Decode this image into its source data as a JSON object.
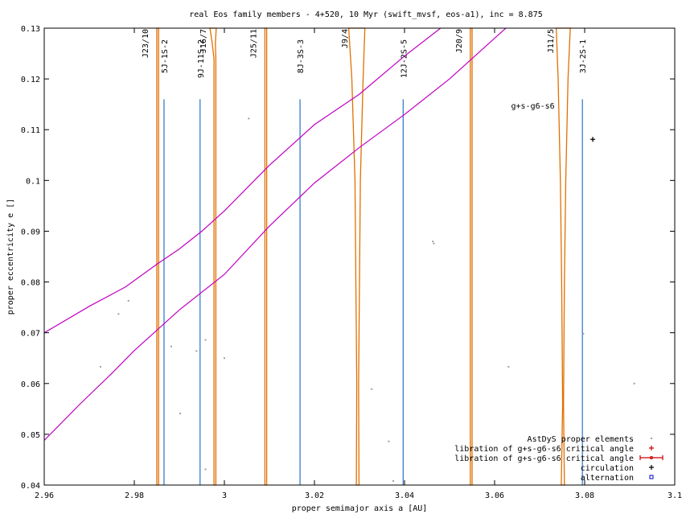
{
  "chart_data": {
    "type": "scatter",
    "title": "real Eos family members - 4+520, 10 Myr (swift_mvsf, eos-a1), inc = 8.875",
    "xlabel": "proper semimajor axis a [AU]",
    "ylabel": "proper eccentricity e []",
    "xlim": [
      2.96,
      3.1
    ],
    "ylim": [
      0.04,
      0.13
    ],
    "grid": false,
    "legend_position": "bottom-right",
    "x_ticks": [
      {
        "v": 2.96,
        "label": "2.96"
      },
      {
        "v": 2.98,
        "label": "2.98"
      },
      {
        "v": 3.0,
        "label": "3"
      },
      {
        "v": 3.02,
        "label": "3.02"
      },
      {
        "v": 3.04,
        "label": "3.04"
      },
      {
        "v": 3.06,
        "label": "3.06"
      },
      {
        "v": 3.08,
        "label": "3.08"
      },
      {
        "v": 3.1,
        "label": "3.1"
      }
    ],
    "y_ticks": [
      {
        "v": 0.04,
        "label": "0.04"
      },
      {
        "v": 0.05,
        "label": "0.05"
      },
      {
        "v": 0.06,
        "label": "0.06"
      },
      {
        "v": 0.07,
        "label": "0.07"
      },
      {
        "v": 0.08,
        "label": "0.08"
      },
      {
        "v": 0.09,
        "label": "0.09"
      },
      {
        "v": 0.1,
        "label": "0.1"
      },
      {
        "v": 0.11,
        "label": "0.11"
      },
      {
        "v": 0.12,
        "label": "0.12"
      },
      {
        "v": 0.13,
        "label": "0.13"
      }
    ],
    "colors": {
      "astdys": "#a0a0a0",
      "libration": "#cc0000",
      "circulation": "#000000",
      "alternation": "#0000cc",
      "mmr": "#e07000",
      "three_body": "#3a7ccc",
      "secular": "#c000c0"
    },
    "legend": [
      {
        "label": "AstDyS proper elements",
        "symbol": "dot",
        "color": "#a0a0a0"
      },
      {
        "label": "libration of g+s-g6-s6 critical angle",
        "symbol": "plus",
        "color": "#cc0000"
      },
      {
        "label": "libration of g+s-g6-s6 critical angle",
        "symbol": "errorbar",
        "color": "#cc0000"
      },
      {
        "label": "circulation",
        "symbol": "plus",
        "color": "#000000"
      },
      {
        "label": "alternation",
        "symbol": "square",
        "color": "#0000cc"
      }
    ],
    "astdys_points": [
      {
        "a": 2.9725,
        "e": 0.0633
      },
      {
        "a": 2.9765,
        "e": 0.0737
      },
      {
        "a": 2.9787,
        "e": 0.0763
      },
      {
        "a": 2.9882,
        "e": 0.0673
      },
      {
        "a": 2.9902,
        "e": 0.0541
      },
      {
        "a": 2.9938,
        "e": 0.0664
      },
      {
        "a": 2.9958,
        "e": 0.0686
      },
      {
        "a": 2.9958,
        "e": 0.0431
      },
      {
        "a": 3.0,
        "e": 0.065
      },
      {
        "a": 3.0054,
        "e": 0.1122
      },
      {
        "a": 3.0327,
        "e": 0.0589
      },
      {
        "a": 3.0365,
        "e": 0.0486
      },
      {
        "a": 3.0375,
        "e": 0.0408
      },
      {
        "a": 3.0463,
        "e": 0.088
      },
      {
        "a": 3.0465,
        "e": 0.0876
      },
      {
        "a": 3.0631,
        "e": 0.0633
      },
      {
        "a": 3.0797,
        "e": 0.0698
      },
      {
        "a": 3.091,
        "e": 0.06
      }
    ],
    "circulation_points": [
      {
        "a": 3.0818,
        "e": 0.1081
      }
    ],
    "mean_motion_resonances": [
      {
        "label": "J23/10",
        "a": 2.9852,
        "band": [
          [
            0.13,
            2.985,
            2.9854
          ],
          [
            0.04,
            2.985,
            2.9854
          ]
        ]
      },
      {
        "label": "J16/7",
        "a": 2.998,
        "band": [
          [
            0.13,
            2.9968,
            2.9982
          ],
          [
            0.127,
            2.9973,
            2.998
          ],
          [
            0.124,
            2.9977,
            2.9981
          ],
          [
            0.04,
            2.9977,
            2.9981
          ]
        ]
      },
      {
        "label": "J25/11",
        "a": 3.0092,
        "band": [
          [
            0.13,
            3.009,
            3.0094
          ],
          [
            0.04,
            3.009,
            3.0094
          ]
        ]
      },
      {
        "label": "J9/4",
        "a": 3.0295,
        "band": [
          [
            0.13,
            3.0276,
            3.0312
          ],
          [
            0.12,
            3.0283,
            3.0308
          ],
          [
            0.1,
            3.029,
            3.0302
          ],
          [
            0.08,
            3.0292,
            3.03
          ],
          [
            0.06,
            3.0294,
            3.0298
          ],
          [
            0.04,
            3.0293,
            3.0299
          ]
        ]
      },
      {
        "label": "J20/9",
        "a": 3.0548,
        "band": [
          [
            0.13,
            3.0546,
            3.055
          ],
          [
            0.04,
            3.0546,
            3.055
          ]
        ]
      },
      {
        "label": "J11/5",
        "a": 3.0752,
        "band": [
          [
            0.13,
            3.0737,
            3.0768
          ],
          [
            0.12,
            3.0741,
            3.0763
          ],
          [
            0.1,
            3.0746,
            3.0758
          ],
          [
            0.08,
            3.0749,
            3.0755
          ],
          [
            0.056,
            3.0751,
            3.0753
          ],
          [
            0.04,
            3.0748,
            3.0755
          ]
        ]
      }
    ],
    "three_body_resonances": [
      {
        "label": "5J-1S-2",
        "a": 2.9866,
        "e_top": 0.116
      },
      {
        "label": "9J-11S-2",
        "a": 2.9946,
        "e_top": 0.116
      },
      {
        "label": "8J-3S-3",
        "a": 3.0168,
        "e_top": 0.116
      },
      {
        "label": "12J-2S-5",
        "a": 3.0397,
        "e_top": 0.116
      },
      {
        "label": "3J-2S-1",
        "a": 3.0795,
        "e_top": 0.116
      }
    ],
    "secular_resonance": {
      "label": "g+s-g6-s6",
      "label_position": {
        "a": 3.0685,
        "e": 0.1148
      },
      "curves": [
        [
          [
            2.96,
            0.07
          ],
          [
            2.97,
            0.0752
          ],
          [
            2.978,
            0.079
          ],
          [
            2.985,
            0.0835
          ],
          [
            2.99,
            0.0865
          ],
          [
            2.995,
            0.09
          ],
          [
            3.0,
            0.094
          ],
          [
            3.01,
            0.103
          ],
          [
            3.02,
            0.111
          ],
          [
            3.03,
            0.117
          ],
          [
            3.04,
            0.1245
          ],
          [
            3.048,
            0.13
          ]
        ],
        [
          [
            2.96,
            0.0488
          ],
          [
            2.968,
            0.056
          ],
          [
            2.975,
            0.062
          ],
          [
            2.98,
            0.0665
          ],
          [
            2.99,
            0.0745
          ],
          [
            3.0,
            0.0815
          ],
          [
            3.01,
            0.091
          ],
          [
            3.02,
            0.0995
          ],
          [
            3.03,
            0.1065
          ],
          [
            3.04,
            0.113
          ],
          [
            3.05,
            0.12
          ],
          [
            3.06,
            0.128
          ],
          [
            3.0625,
            0.13
          ]
        ]
      ]
    }
  }
}
